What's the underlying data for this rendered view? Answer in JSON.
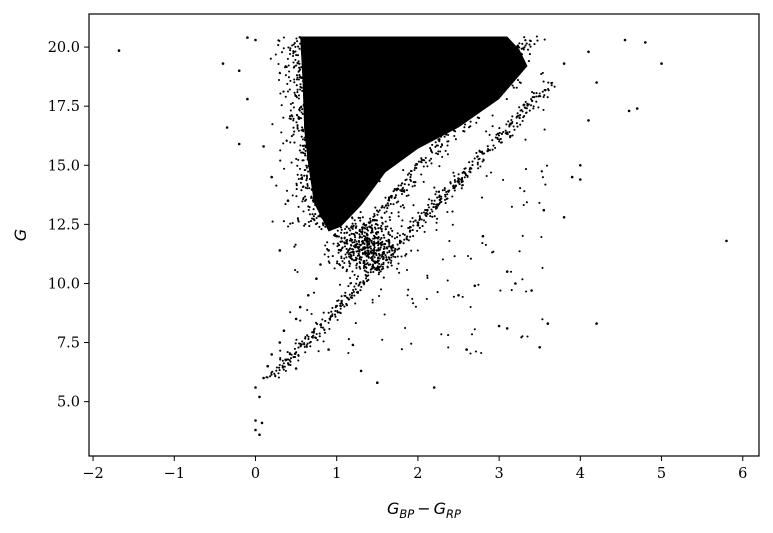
{
  "chart_data": {
    "type": "scatter",
    "title": "",
    "xlabel_main": "G",
    "xlabel_sub1": "BP",
    "xlabel_minus": "−",
    "xlabel_sub2": "RP",
    "ylabel": "G",
    "xlim": [
      -2.05,
      6.2
    ],
    "ylim": [
      2.7,
      21.4
    ],
    "xticks": [
      -2,
      -1,
      0,
      1,
      2,
      3,
      4,
      5,
      6
    ],
    "xtick_labels": [
      "−2",
      "−1",
      "0",
      "1",
      "2",
      "3",
      "4",
      "5",
      "6"
    ],
    "yticks": [
      5.0,
      7.5,
      10.0,
      12.5,
      15.0,
      17.5,
      20.0
    ],
    "ytick_labels": [
      "5.0",
      "7.5",
      "10.0",
      "12.5",
      "15.0",
      "17.5",
      "20.0"
    ],
    "grid": false,
    "legend": "none",
    "marker_color": "#000000",
    "series": [
      {
        "points": [
          [
            -1.68,
            19.85
          ],
          [
            -0.35,
            16.6
          ],
          [
            -0.2,
            15.9
          ],
          [
            0.0,
            4.2
          ],
          [
            0.0,
            3.8
          ],
          [
            0.05,
            3.6
          ],
          [
            0.08,
            4.1
          ],
          [
            0.0,
            5.6
          ],
          [
            0.05,
            5.2
          ],
          [
            0.1,
            6.0
          ],
          [
            0.15,
            6.5
          ],
          [
            0.2,
            7.0
          ],
          [
            0.3,
            7.5
          ],
          [
            0.35,
            8.0
          ],
          [
            0.5,
            8.5
          ],
          [
            0.55,
            9.0
          ],
          [
            0.65,
            9.5
          ],
          [
            0.75,
            10.2
          ],
          [
            0.8,
            10.8
          ],
          [
            0.9,
            11.4
          ],
          [
            1.0,
            12.0
          ],
          [
            0.5,
            6.4
          ],
          [
            0.9,
            7.2
          ],
          [
            1.2,
            7.4
          ],
          [
            1.3,
            6.3
          ],
          [
            1.5,
            5.8
          ],
          [
            2.2,
            5.6
          ],
          [
            0.3,
            11.4
          ],
          [
            0.4,
            13.5
          ],
          [
            0.2,
            14.5
          ],
          [
            0.1,
            15.8
          ],
          [
            -0.1,
            17.8
          ],
          [
            -0.2,
            19.0
          ],
          [
            -0.4,
            19.3
          ],
          [
            -0.1,
            20.4
          ],
          [
            0.0,
            20.3
          ],
          [
            3.1,
            10.5
          ],
          [
            3.2,
            10.0
          ],
          [
            3.4,
            9.7
          ],
          [
            3.6,
            8.3
          ],
          [
            3.0,
            8.2
          ],
          [
            3.1,
            8.1
          ],
          [
            2.6,
            7.2
          ],
          [
            3.5,
            7.3
          ],
          [
            4.2,
            8.3
          ],
          [
            2.5,
            9.5
          ],
          [
            2.7,
            9.9
          ],
          [
            2.8,
            12.0
          ],
          [
            3.55,
            13.1
          ],
          [
            3.8,
            12.8
          ],
          [
            3.9,
            14.5
          ],
          [
            4.0,
            14.4
          ],
          [
            4.0,
            15.0
          ],
          [
            4.2,
            18.5
          ],
          [
            4.1,
            16.9
          ],
          [
            4.6,
            17.3
          ],
          [
            4.7,
            17.4
          ],
          [
            4.55,
            20.3
          ],
          [
            4.8,
            20.2
          ],
          [
            5.0,
            19.3
          ],
          [
            5.8,
            11.8
          ],
          [
            4.1,
            19.8
          ],
          [
            3.8,
            19.3
          ]
        ]
      }
    ]
  }
}
